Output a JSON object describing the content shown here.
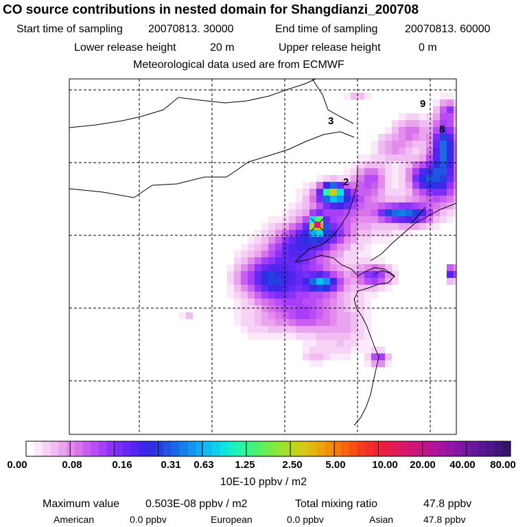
{
  "title": "CO  source contributions in nested domain for Shangdianzi_200708",
  "sampling": {
    "start_label": "Start time of sampling",
    "start_value": "20070813. 30000",
    "end_label": "End time of sampling",
    "end_value": "20070813. 60000"
  },
  "release": {
    "lower_label": "Lower release height",
    "lower_value": "20 m",
    "upper_label": "Upper release height",
    "upper_value": "0 m"
  },
  "met_note": "Meteorological data used are from ECMWF",
  "map_labels": [
    "9",
    "3",
    "8",
    "2"
  ],
  "colorbar": {
    "ticks": [
      "0.00",
      "0.08",
      "0.16",
      "0.31",
      "0.63",
      "1.25",
      "2.50",
      "5.00",
      "10.00",
      "20.00",
      "40.00",
      "80.00"
    ],
    "unit": "10E-10 ppbv / m2",
    "colors": [
      "#ffffff",
      "#fbe8fb",
      "#f6d2f6",
      "#f0bcf2",
      "#eaa4ef",
      "#e38cec",
      "#d873ec",
      "#c95ff0",
      "#b94df5",
      "#a63ff7",
      "#8f33f7",
      "#7a2df6",
      "#6628f3",
      "#5226ef",
      "#3f26e9",
      "#2f2ee3",
      "#2440de",
      "#1f55e0",
      "#1a6ae6",
      "#167fec",
      "#1494f0",
      "#12a9f1",
      "#10bdf0",
      "#0fd0ec",
      "#10e2e0",
      "#18efc8",
      "#26f4a8",
      "#38f48a",
      "#4df170",
      "#64ee58",
      "#7ce944",
      "#95e333",
      "#aedb26",
      "#c4d21c",
      "#d6c615",
      "#e3b510",
      "#eca30d",
      "#f28f0b",
      "#f67a0b",
      "#f8640d",
      "#f84f12",
      "#f63d1b",
      "#f32f28",
      "#ef2535",
      "#ea1e44",
      "#e41a53",
      "#dd1762",
      "#d41571",
      "#ca1480",
      "#be148c",
      "#b11497",
      "#a3149f",
      "#9414a4",
      "#8515a5",
      "#7616a3",
      "#67169d",
      "#591694",
      "#4c1688",
      "#40157a",
      "#35146b"
    ]
  },
  "summary": {
    "max_label": "Maximum value",
    "max_value": "0.503E-08 ppbv / m2",
    "total_label": "Total mixing ratio",
    "total_value": "47.8 ppbv",
    "american_label": "American",
    "american_value": "0.0 ppbv",
    "european_label": "European",
    "european_value": "0.0 ppbv",
    "asian_label": "Asian",
    "asian_value": "47.8 ppbv"
  }
}
